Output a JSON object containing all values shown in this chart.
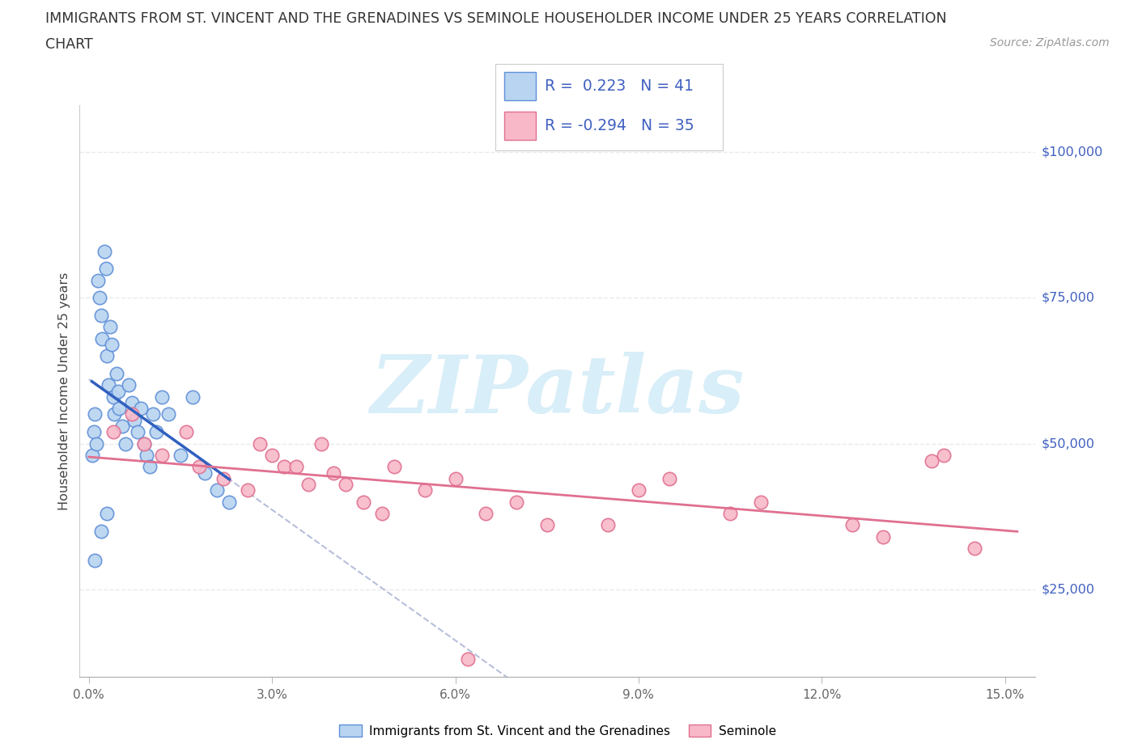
{
  "title_line1": "IMMIGRANTS FROM ST. VINCENT AND THE GRENADINES VS SEMINOLE HOUSEHOLDER INCOME UNDER 25 YEARS CORRELATION",
  "title_line2": "CHART",
  "source": "Source: ZipAtlas.com",
  "ylabel": "Householder Income Under 25 years",
  "legend1_label": "Immigrants from St. Vincent and the Grenadines",
  "legend2_label": "Seminole",
  "r1": 0.223,
  "n1": 41,
  "r2": -0.294,
  "n2": 35,
  "color_blue_fill": "#B8D4F0",
  "color_blue_edge": "#6090D8",
  "color_blue_line": "#3060C0",
  "color_pink_fill": "#F8B8C8",
  "color_pink_edge": "#E07090",
  "color_pink_line": "#E07090",
  "color_text_blue": "#4060C0",
  "color_dashed": "#B0B8D8",
  "watermark": "ZIPatlas",
  "watermark_color": "#D8EEF8",
  "xlim": [
    -0.15,
    15.5
  ],
  "ylim": [
    10000,
    108000
  ],
  "xtick_vals": [
    0.0,
    3.0,
    6.0,
    9.0,
    12.0,
    15.0
  ],
  "xtick_labels": [
    "0.0%",
    "3.0%",
    "6.0%",
    "9.0%",
    "12.0%",
    "15.0%"
  ],
  "ytick_vals": [
    25000,
    50000,
    75000,
    100000
  ],
  "ytick_labels": [
    "$25,000",
    "$50,000",
    "$75,000",
    "$100,000"
  ],
  "blue_x": [
    0.05,
    0.08,
    0.1,
    0.12,
    0.15,
    0.18,
    0.2,
    0.22,
    0.25,
    0.28,
    0.3,
    0.32,
    0.35,
    0.38,
    0.4,
    0.42,
    0.45,
    0.48,
    0.5,
    0.55,
    0.6,
    0.65,
    0.7,
    0.75,
    0.8,
    0.85,
    0.9,
    0.95,
    1.0,
    1.05,
    1.1,
    1.2,
    1.3,
    1.5,
    1.7,
    1.9,
    2.1,
    2.3,
    0.1,
    0.2,
    0.3
  ],
  "blue_y": [
    48000,
    52000,
    55000,
    50000,
    78000,
    75000,
    72000,
    68000,
    83000,
    80000,
    65000,
    60000,
    70000,
    67000,
    58000,
    55000,
    62000,
    59000,
    56000,
    53000,
    50000,
    60000,
    57000,
    54000,
    52000,
    56000,
    50000,
    48000,
    46000,
    55000,
    52000,
    58000,
    55000,
    48000,
    58000,
    45000,
    42000,
    40000,
    30000,
    35000,
    38000
  ],
  "pink_x": [
    0.4,
    0.7,
    0.9,
    1.2,
    1.6,
    1.8,
    2.2,
    2.6,
    2.8,
    3.0,
    3.2,
    3.6,
    3.8,
    4.0,
    4.2,
    4.5,
    5.0,
    5.5,
    6.0,
    6.5,
    7.0,
    7.5,
    8.5,
    9.0,
    9.5,
    10.5,
    11.0,
    12.5,
    13.0,
    13.8,
    14.0,
    14.5,
    3.4,
    4.8,
    6.2
  ],
  "pink_y": [
    52000,
    55000,
    50000,
    48000,
    52000,
    46000,
    44000,
    42000,
    50000,
    48000,
    46000,
    43000,
    50000,
    45000,
    43000,
    40000,
    46000,
    42000,
    44000,
    38000,
    40000,
    36000,
    36000,
    42000,
    44000,
    38000,
    40000,
    36000,
    34000,
    47000,
    48000,
    32000,
    46000,
    38000,
    13000
  ],
  "background": "#FFFFFF",
  "grid_color": "#E5E5E5",
  "grid_style": "--"
}
